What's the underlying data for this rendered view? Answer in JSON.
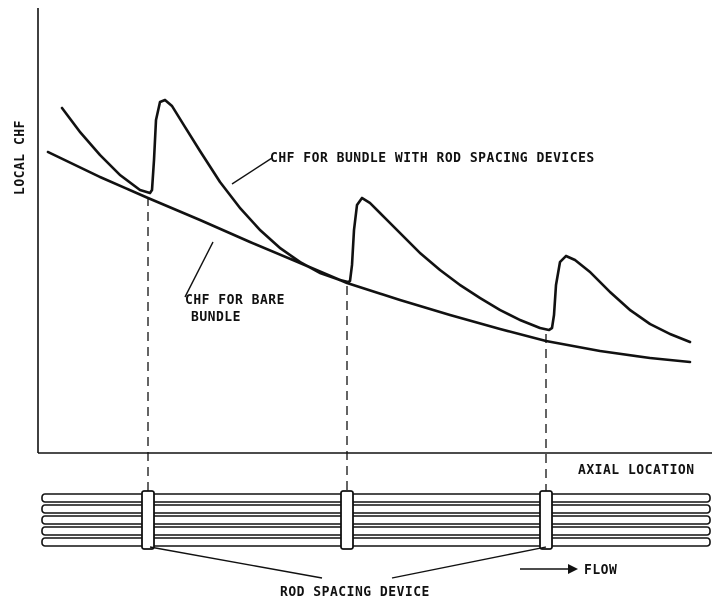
{
  "chart_data": {
    "type": "line",
    "ylabel": "LOCAL CHF",
    "xlabel": "AXIAL LOCATION",
    "grid": false,
    "annotations": {
      "spaced_bundle": "CHF FOR BUNDLE WITH ROD SPACING DEVICES",
      "bare_bundle_line1": "CHF FOR BARE",
      "bare_bundle_line2": "BUNDLE",
      "spacing_device": "ROD SPACING DEVICE",
      "flow": "FLOW"
    },
    "spacer_locations": [
      148,
      347,
      546
    ],
    "series": [
      {
        "name": "CHF FOR BARE BUNDLE",
        "points": [
          [
            48,
            152
          ],
          [
            100,
            177
          ],
          [
            148,
            198
          ],
          [
            200,
            220
          ],
          [
            250,
            242
          ],
          [
            300,
            263
          ],
          [
            347,
            283
          ],
          [
            400,
            300
          ],
          [
            450,
            315
          ],
          [
            500,
            329
          ],
          [
            546,
            341
          ],
          [
            600,
            351
          ],
          [
            650,
            358
          ],
          [
            690,
            362
          ]
        ]
      },
      {
        "name": "CHF FOR BUNDLE WITH ROD SPACING DEVICES",
        "points": [
          [
            62,
            108
          ],
          [
            80,
            132
          ],
          [
            100,
            155
          ],
          [
            120,
            175
          ],
          [
            140,
            190
          ],
          [
            150,
            193
          ],
          [
            152,
            190
          ],
          [
            154,
            160
          ],
          [
            156,
            120
          ],
          [
            160,
            102
          ],
          [
            165,
            100
          ],
          [
            172,
            106
          ],
          [
            185,
            127
          ],
          [
            200,
            151
          ],
          [
            220,
            182
          ],
          [
            240,
            208
          ],
          [
            260,
            230
          ],
          [
            280,
            248
          ],
          [
            300,
            262
          ],
          [
            320,
            273
          ],
          [
            340,
            280
          ],
          [
            348,
            282
          ],
          [
            350,
            281
          ],
          [
            352,
            265
          ],
          [
            354,
            230
          ],
          [
            357,
            205
          ],
          [
            362,
            198
          ],
          [
            370,
            203
          ],
          [
            385,
            218
          ],
          [
            400,
            233
          ],
          [
            420,
            253
          ],
          [
            440,
            270
          ],
          [
            460,
            285
          ],
          [
            480,
            298
          ],
          [
            500,
            310
          ],
          [
            520,
            320
          ],
          [
            540,
            328
          ],
          [
            549,
            330
          ],
          [
            552,
            328
          ],
          [
            554,
            315
          ],
          [
            556,
            285
          ],
          [
            560,
            262
          ],
          [
            566,
            256
          ],
          [
            575,
            260
          ],
          [
            590,
            272
          ],
          [
            610,
            292
          ],
          [
            630,
            310
          ],
          [
            650,
            324
          ],
          [
            670,
            334
          ],
          [
            690,
            342
          ]
        ]
      }
    ]
  }
}
